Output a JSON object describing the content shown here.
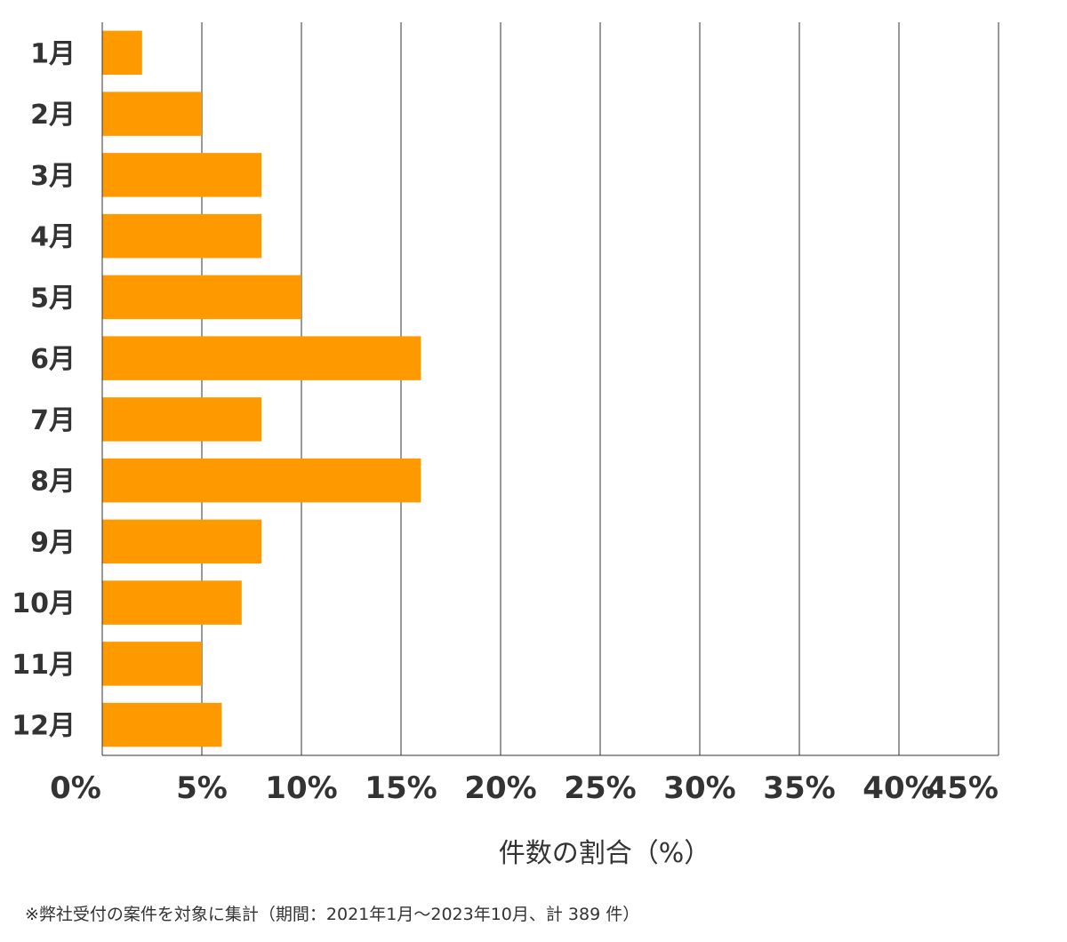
{
  "chart_data": {
    "type": "bar",
    "orientation": "horizontal",
    "categories": [
      "1月",
      "2月",
      "3月",
      "4月",
      "5月",
      "6月",
      "7月",
      "8月",
      "9月",
      "10月",
      "11月",
      "12月"
    ],
    "values": [
      2.0,
      5.0,
      8.0,
      8.0,
      10.0,
      16.0,
      8.0,
      16.0,
      8.0,
      7.0,
      5.0,
      6.0
    ],
    "xlim": [
      0,
      45
    ],
    "x_ticks": [
      0,
      5,
      10,
      15,
      20,
      25,
      30,
      35,
      40,
      45
    ],
    "x_tick_labels": [
      "0%",
      "5%",
      "10%",
      "15%",
      "20%",
      "25%",
      "30%",
      "35%",
      "40%",
      "45%"
    ],
    "xlabel": "件数の割合（%）",
    "ylabel": "",
    "title": "",
    "grid": "vertical",
    "bar_color": "#FF9900",
    "grid_color": "#333333",
    "text_color": "#333333"
  },
  "footnote": "※弊社受付の案件を対象に集計（期間：2021年1月～2023年10月、計 389 件）"
}
